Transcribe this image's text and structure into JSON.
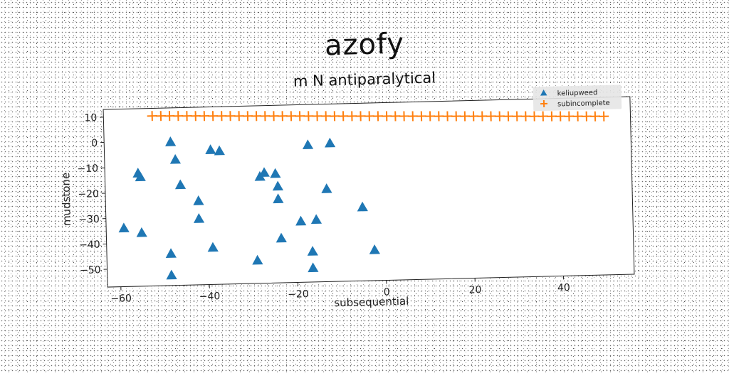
{
  "chart_data": {
    "type": "scatter",
    "title": "azofy",
    "subtitle": "m N antiparalytical",
    "xlabel": "subsequential",
    "ylabel": "mudstone",
    "xlim": [
      -63,
      56
    ],
    "ylim": [
      -57,
      13
    ],
    "xticks": [
      -60,
      -40,
      -20,
      0,
      20,
      40
    ],
    "yticks": [
      10,
      0,
      -10,
      -20,
      -30,
      -40,
      -50
    ],
    "xtick_labels": [
      "−60",
      "−40",
      "−20",
      "0",
      "20",
      "40"
    ],
    "ytick_labels": [
      "10",
      "0",
      "−10",
      "−20",
      "−30",
      "−40",
      "−50"
    ],
    "grid": false,
    "legend_position": "top-right",
    "series": [
      {
        "name": "keliupweed",
        "marker": "triangle",
        "color": "#1f77b4",
        "points": [
          {
            "x": -48,
            "y": -0.5
          },
          {
            "x": -47,
            "y": -7.5
          },
          {
            "x": -55.5,
            "y": -12.5
          },
          {
            "x": -55,
            "y": -14
          },
          {
            "x": -46,
            "y": -17.5
          },
          {
            "x": -39,
            "y": -4
          },
          {
            "x": -37,
            "y": -4.5
          },
          {
            "x": -17,
            "y": -3
          },
          {
            "x": -12,
            "y": -2.5
          },
          {
            "x": -28,
            "y": -15
          },
          {
            "x": -27,
            "y": -13.5
          },
          {
            "x": -24.5,
            "y": -14
          },
          {
            "x": -24,
            "y": -19
          },
          {
            "x": -24,
            "y": -24
          },
          {
            "x": -13,
            "y": -20.5
          },
          {
            "x": -42,
            "y": -24
          },
          {
            "x": -42,
            "y": -31
          },
          {
            "x": -59,
            "y": -34
          },
          {
            "x": -55,
            "y": -36
          },
          {
            "x": -19,
            "y": -33
          },
          {
            "x": -15.5,
            "y": -32.5
          },
          {
            "x": -5,
            "y": -28
          },
          {
            "x": -39,
            "y": -42.5
          },
          {
            "x": -23.5,
            "y": -39.5
          },
          {
            "x": -48.5,
            "y": -44.5
          },
          {
            "x": -29,
            "y": -48
          },
          {
            "x": -16.5,
            "y": -45
          },
          {
            "x": -2.5,
            "y": -45
          },
          {
            "x": -16.5,
            "y": -51.5
          },
          {
            "x": -48.5,
            "y": -53
          }
        ]
      },
      {
        "name": "subincomplete",
        "marker": "plus",
        "color": "#ff7f0e",
        "line": {
          "x_start": -52,
          "x_end": 50,
          "y_start": 10,
          "y_end": 5.5,
          "count": 53
        }
      }
    ]
  }
}
